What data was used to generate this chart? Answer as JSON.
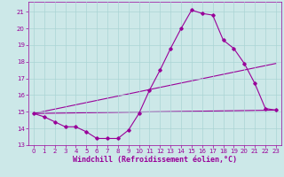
{
  "title": "",
  "xlabel": "Windchill (Refroidissement éolien,°C)",
  "background_color": "#cce8e8",
  "line_color": "#990099",
  "xlim": [
    -0.5,
    23.5
  ],
  "ylim": [
    13,
    21.6
  ],
  "yticks": [
    13,
    14,
    15,
    16,
    17,
    18,
    19,
    20,
    21
  ],
  "xticks": [
    0,
    1,
    2,
    3,
    4,
    5,
    6,
    7,
    8,
    9,
    10,
    11,
    12,
    13,
    14,
    15,
    16,
    17,
    18,
    19,
    20,
    21,
    22,
    23
  ],
  "line1_x": [
    0,
    1,
    2,
    3,
    4,
    5,
    6,
    7,
    8,
    9,
    10,
    11,
    12,
    13,
    14,
    15,
    16,
    17,
    18,
    19,
    20,
    21,
    22,
    23
  ],
  "line1_y": [
    14.9,
    14.7,
    14.4,
    14.1,
    14.1,
    13.8,
    13.4,
    13.4,
    13.4,
    13.9,
    14.9,
    16.3,
    17.5,
    18.8,
    20.0,
    21.1,
    20.9,
    20.8,
    19.3,
    18.8,
    17.9,
    16.7,
    15.2,
    15.1
  ],
  "line2_x": [
    0,
    23
  ],
  "line2_y": [
    14.9,
    15.1
  ],
  "line3_x": [
    0,
    23
  ],
  "line3_y": [
    14.9,
    17.9
  ],
  "grid_color": "#aad4d4",
  "tick_fontsize": 5.0,
  "xlabel_fontsize": 6.0
}
